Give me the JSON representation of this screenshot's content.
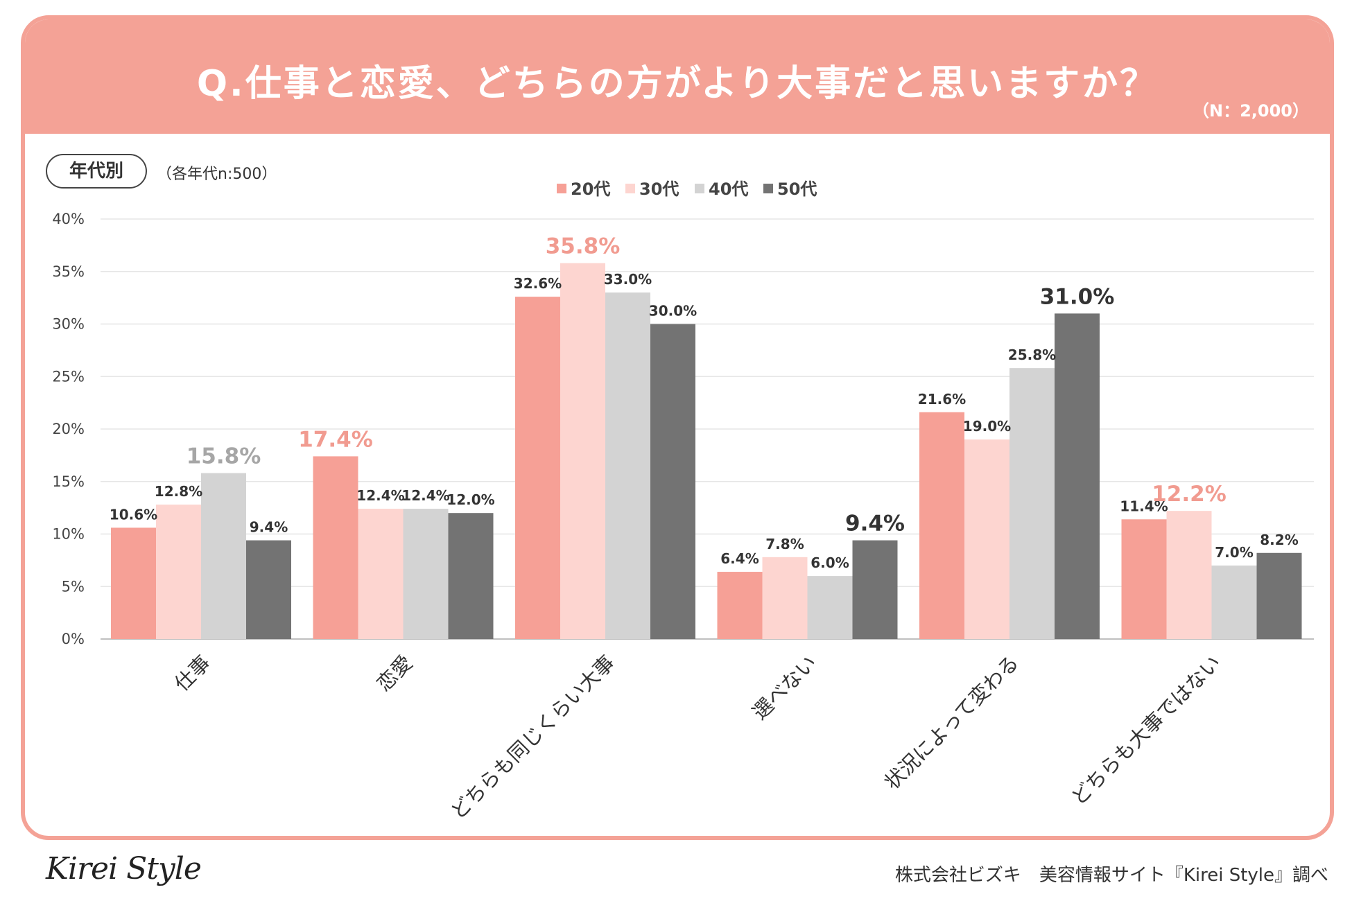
{
  "header": {
    "title": "Q.仕事と恋愛、どちらの方がより大事だと思いますか？",
    "sample_size": "（N：2,000）"
  },
  "segment": {
    "label": "年代別",
    "note": "（各年代n:500）"
  },
  "footer": {
    "logo": "Kirei Style",
    "credit": "株式会社ビズキ　美容情報サイト『Kirei Style』調べ"
  },
  "colors": {
    "header_bg": "#f4a296",
    "series": [
      "#f6a096",
      "#fdd5d0",
      "#d3d3d3",
      "#737373"
    ],
    "highlight_text": [
      "#f19b90",
      "#f19b90",
      "#a6a6a6",
      "#333333"
    ]
  },
  "chart_data": {
    "type": "bar",
    "title": "Q.仕事と恋愛、どちらの方がより大事だと思いますか？",
    "xlabel": "",
    "ylabel": "",
    "ylim": [
      0,
      40
    ],
    "yticks": [
      0,
      5,
      10,
      15,
      20,
      25,
      30,
      35,
      40
    ],
    "ytick_labels": [
      "0%",
      "5%",
      "10%",
      "15%",
      "20%",
      "25%",
      "30%",
      "35%",
      "40%"
    ],
    "grid": true,
    "legend_position": "top-center",
    "categories": [
      "仕事",
      "恋愛",
      "どちらも同じくらい大事",
      "選べない",
      "状況によって変わる",
      "どちらも大事ではない"
    ],
    "series": [
      {
        "name": "20代",
        "values": [
          10.6,
          17.4,
          32.6,
          6.4,
          21.6,
          11.4
        ]
      },
      {
        "name": "30代",
        "values": [
          12.8,
          12.4,
          35.8,
          7.8,
          19.0,
          12.2
        ]
      },
      {
        "name": "40代",
        "values": [
          15.8,
          12.4,
          33.0,
          6.0,
          25.8,
          7.0
        ]
      },
      {
        "name": "50代",
        "values": [
          9.4,
          12.0,
          30.0,
          9.4,
          31.0,
          8.2
        ]
      }
    ],
    "value_labels": [
      [
        "10.6%",
        "17.4%",
        "32.6%",
        "6.4%",
        "21.6%",
        "11.4%"
      ],
      [
        "12.8%",
        "12.4%",
        "35.8%",
        "7.8%",
        "19.0%",
        "12.2%"
      ],
      [
        "15.8%",
        "12.4%",
        "33.0%",
        "6.0%",
        "25.8%",
        "7.0%"
      ],
      [
        "9.4%",
        "12.0%",
        "30.0%",
        "9.4%",
        "31.0%",
        "8.2%"
      ]
    ],
    "highlighted": [
      {
        "series": 2,
        "category": 0
      },
      {
        "series": 0,
        "category": 1
      },
      {
        "series": 1,
        "category": 2
      },
      {
        "series": 3,
        "category": 3
      },
      {
        "series": 3,
        "category": 4
      },
      {
        "series": 1,
        "category": 5
      }
    ]
  }
}
